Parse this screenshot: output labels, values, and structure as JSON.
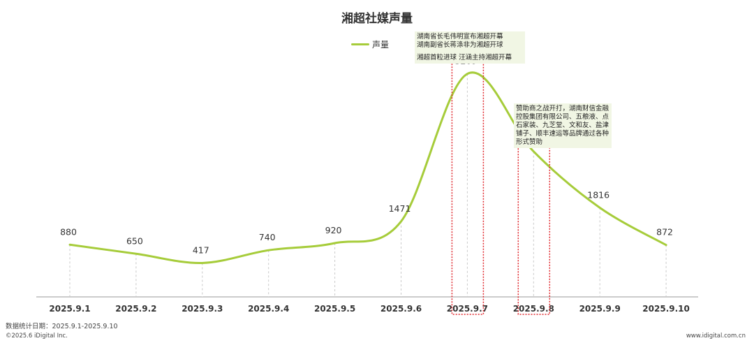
{
  "chart_data": {
    "type": "line",
    "title": "湘超社媒声量",
    "categories": [
      "2025.9.1",
      "2025.9.2",
      "2025.9.3",
      "2025.9.4",
      "2025.9.5",
      "2025.9.6",
      "2025.9.7",
      "2025.9.8",
      "2025.9.9",
      "2025.9.10"
    ],
    "series": [
      {
        "name": "声量",
        "values": [
          880,
          650,
          417,
          740,
          920,
          1471,
          5209,
          3243,
          1816,
          872
        ]
      }
    ],
    "ylim": [
      0,
      6000
    ],
    "legend": "top-center",
    "grid": false,
    "highlight_categories": [
      "2025.9.7",
      "2025.9.8"
    ],
    "annotations": [
      {
        "category": "2025.9.7",
        "lines": [
          "湖南省长毛伟明宣布湘超开幕",
          "湖南副省长蒋涤非为湘超开球",
          "",
          "湘超首粒进球   汪涵主持湘超开幕"
        ]
      },
      {
        "category": "2025.9.8",
        "lines": [
          "赞助商之战开打，湖南财信金融",
          "控股集团有限公司、五粮液、点",
          "石家装、九芝堂、文和友、盐津",
          "铺子、顺丰速运等品牌通过各种",
          "形式赞助"
        ]
      }
    ]
  },
  "colors": {
    "line": "#a6cc3a",
    "highlight": "#e0262b",
    "annotation_bg": "#f1f6e4",
    "axis": "#999999",
    "guide": "#c9c9c9"
  },
  "footer": {
    "data_period": "数据统计日期：2025.9.1-2025.9.10",
    "copyright": "©2025.6 iDigital Inc.",
    "website": "www.idigital.com.cn"
  }
}
